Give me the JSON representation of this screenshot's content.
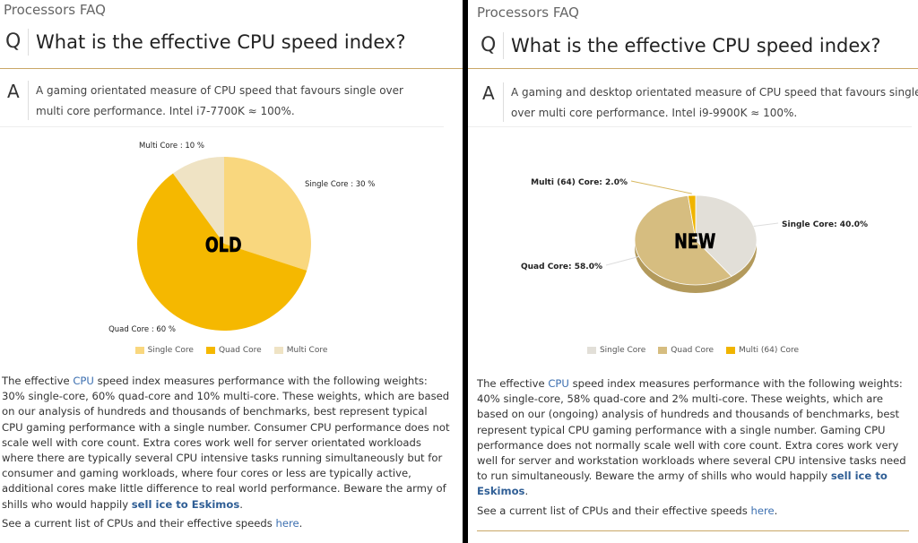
{
  "panels": [
    {
      "crumb": "Processors FAQ",
      "q_letter": "Q",
      "question": "What is the effective CPU speed index?",
      "a_letter": "A",
      "answer": "A gaming orientated measure of CPU speed that favours single over multi core performance. Intel i7-7700K ≈ 100%.",
      "body_1": "The effective ",
      "cpu_link": "CPU",
      "body_2": " speed index measures performance with the following weights: 30% single-core, 60% quad-core and 10% multi-core. These weights, which are based on our analysis of hundreds and thousands of benchmarks, best represent typical CPU gaming performance with a single number. Consumer CPU performance does not scale well with core count. Extra cores work well for server orientated workloads where there are typically several CPU intensive tasks running simultaneously but for consumer and gaming workloads, where four cores or less are typically active, additional cores make little difference to real world performance. Beware the army of shills who would happily ",
      "eskimo_link": "sell ice to Eskimos",
      "body_3": ".",
      "see_text": "See a current list of CPUs and their effective speeds ",
      "here_link": "here",
      "see_end": "."
    },
    {
      "crumb": "Processors FAQ",
      "q_letter": "Q",
      "question": "What is the effective CPU speed index?",
      "a_letter": "A",
      "answer": "A gaming and desktop orientated measure of CPU speed that favours single over multi core performance. Intel i9-9900K ≈ 100%.",
      "body_1": "The effective ",
      "cpu_link": "CPU",
      "body_2": " speed index measures performance with the following weights: 40% single-core, 58% quad-core and 2% multi-core. These weights, which are based on our (ongoing) analysis of hundreds and thousands of benchmarks, best represent typical CPU gaming performance with a single number. Gaming CPU performance does not normally scale well with core count. Extra cores work very well for server and workstation workloads where several CPU intensive tasks need to run simultaneously. Beware the army of shills who would happily ",
      "eskimo_link": "sell ice to Eskimos",
      "body_3": ".",
      "see_text": "See a current list of CPUs and their effective speeds ",
      "here_link": "here",
      "see_end": "."
    }
  ],
  "chart_data": [
    {
      "type": "pie",
      "overlay_label": "OLD",
      "style": "2d",
      "categories": [
        "Single Core",
        "Quad Core",
        "Multi Core"
      ],
      "values": [
        30,
        60,
        10
      ],
      "data_labels": [
        "Single Core : 30 %",
        "Quad Core : 60 %",
        "Multi Core : 10 %"
      ],
      "colors": [
        "#f9d77e",
        "#f5b800",
        "#efe3c4"
      ],
      "legend": "bottom"
    },
    {
      "type": "pie",
      "overlay_label": "NEW",
      "style": "3d",
      "categories": [
        "Single Core",
        "Quad Core",
        "Multi (64) Core"
      ],
      "values": [
        40.0,
        58.0,
        2.0
      ],
      "data_labels": [
        "Single Core: 40.0%",
        "Quad Core: 58.0%",
        "Multi (64) Core: 2.0%"
      ],
      "colors": [
        "#e2dfd8",
        "#d6bd80",
        "#f0b400"
      ],
      "legend": "bottom"
    }
  ]
}
